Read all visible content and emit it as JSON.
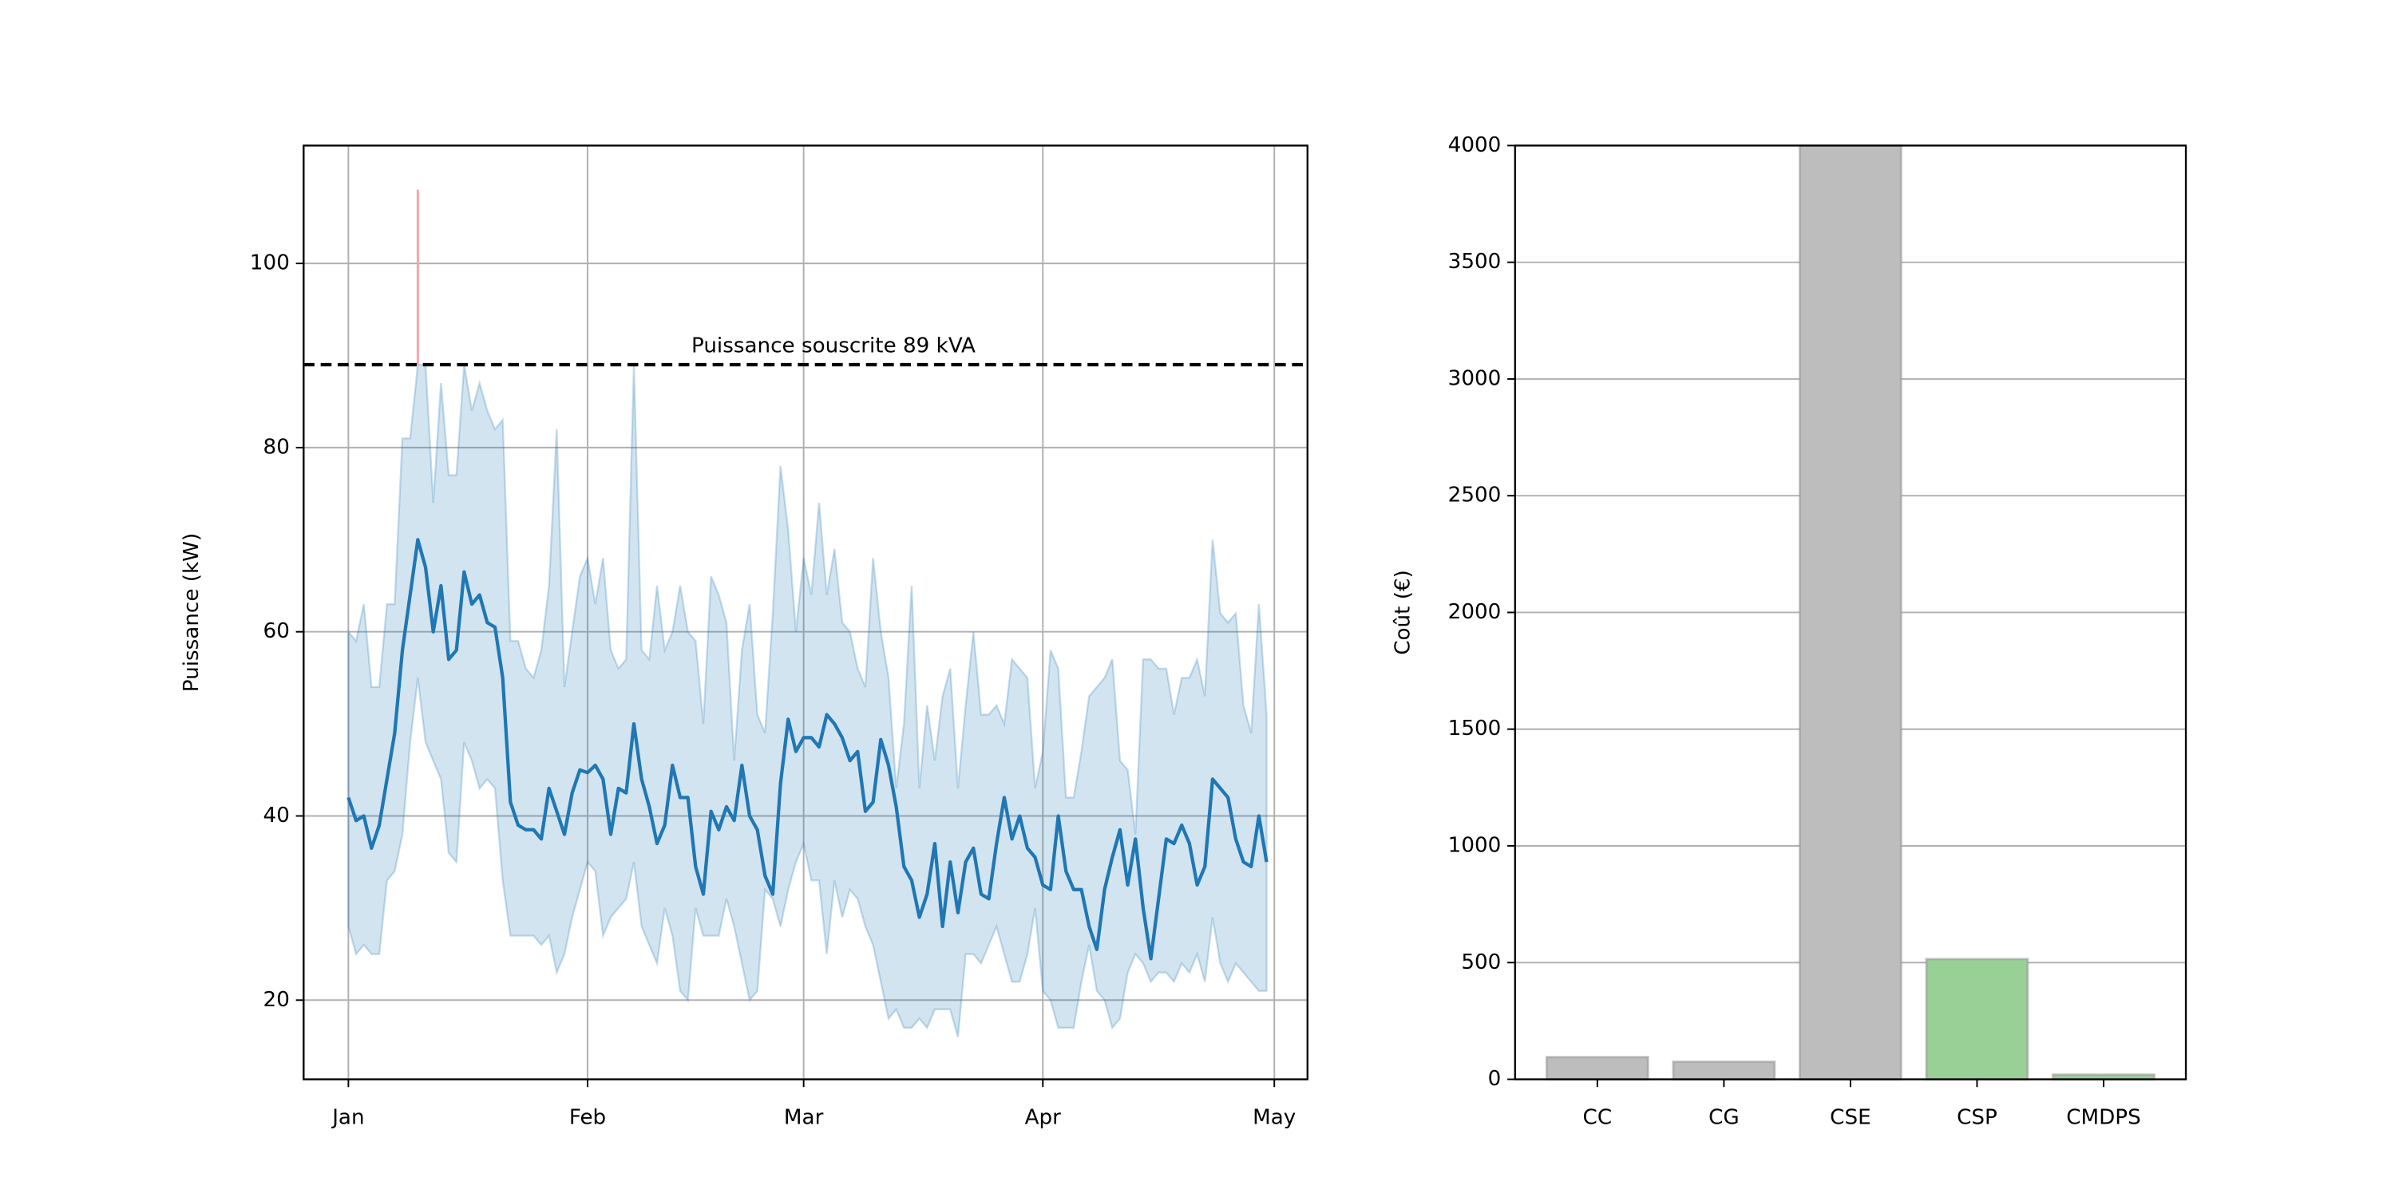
{
  "chart_data": [
    {
      "type": "line",
      "ylabel": "Puissance (kW)",
      "x": [
        0,
        1,
        2,
        3,
        4,
        5,
        6,
        7,
        8,
        9,
        10,
        11,
        12,
        13,
        14,
        15,
        16,
        17,
        18,
        19,
        20,
        21,
        22,
        23,
        24,
        25,
        26,
        27,
        28,
        29,
        30,
        31,
        32,
        33,
        34,
        35,
        36,
        37,
        38,
        39,
        40,
        41,
        42,
        43,
        44,
        45,
        46,
        47,
        48,
        49,
        50,
        51,
        52,
        53,
        54,
        55,
        56,
        57,
        58,
        59,
        60,
        61,
        62,
        63,
        64,
        65,
        66,
        67,
        68,
        69,
        70,
        71,
        72,
        73,
        74,
        75,
        76,
        77,
        78,
        79,
        80,
        81,
        82,
        83,
        84,
        85,
        86,
        87,
        88,
        89,
        90,
        91,
        92,
        93,
        94,
        95,
        96,
        97,
        98,
        99,
        100,
        101,
        102,
        103,
        104,
        105,
        106,
        107,
        108,
        109,
        110,
        111,
        112,
        113,
        114,
        115,
        116,
        117,
        118,
        119
      ],
      "series": [
        {
          "color": "#1f77b4",
          "values": [
            42,
            39.5,
            40,
            36.5,
            39,
            44,
            49,
            58,
            64,
            70,
            67,
            60,
            65,
            57,
            58,
            66.5,
            63,
            64,
            61,
            60.5,
            55,
            41.5,
            39,
            38.5,
            38.5,
            37.5,
            43,
            40.5,
            38,
            42.5,
            45,
            44.7,
            45.5,
            44,
            38,
            43,
            42.5,
            50,
            44,
            41,
            37,
            39,
            45.5,
            42,
            42,
            34.5,
            31.5,
            40.5,
            38.5,
            41,
            39.5,
            45.5,
            40,
            38.5,
            33.5,
            31.5,
            43.5,
            50.5,
            47,
            48.5,
            48.5,
            47.5,
            51,
            50,
            48.5,
            46,
            47,
            40.5,
            41.5,
            48.3,
            45.5,
            41,
            34.5,
            33,
            29,
            31.5,
            37,
            28,
            35,
            29.5,
            35,
            36.5,
            31.5,
            31,
            37,
            42,
            37.5,
            40,
            36.5,
            35.5,
            32.5,
            32,
            40,
            34,
            32,
            32,
            28,
            25.5,
            32,
            35.5,
            38.5,
            32.5,
            37.5,
            30,
            24.5,
            31,
            37.5,
            37,
            39,
            37,
            32.5,
            34.5,
            44,
            43,
            42,
            37.5,
            35,
            34.5,
            40,
            35
          ]
        }
      ],
      "band": {
        "color": "#1f77b4",
        "upper": [
          60,
          59,
          63,
          54,
          54,
          63,
          63,
          81,
          81,
          89,
          89,
          74,
          87,
          77,
          77,
          89,
          84,
          87,
          84,
          82,
          83,
          59,
          59,
          56,
          55,
          58,
          65,
          82,
          54,
          60,
          66,
          68,
          63,
          68,
          58,
          56,
          57,
          89,
          58,
          57,
          65,
          58,
          60,
          65,
          60,
          59,
          50,
          66,
          64,
          61,
          46,
          58,
          63,
          51,
          49,
          62,
          78,
          71,
          60,
          68,
          64,
          74,
          64,
          69,
          61,
          60,
          56,
          54,
          68,
          60,
          55,
          43,
          50,
          65,
          43,
          52,
          46,
          53,
          56,
          43,
          52,
          60,
          51,
          51,
          52,
          50,
          57,
          56,
          55,
          43,
          47,
          58,
          56,
          42,
          42,
          47,
          53,
          54,
          55,
          57,
          46,
          45,
          38,
          57,
          57,
          56,
          56,
          51,
          55,
          55,
          57,
          53,
          70,
          62,
          61,
          62,
          52,
          49,
          63,
          51
        ],
        "lower": [
          28,
          25,
          26,
          25,
          25,
          33,
          34,
          38,
          48,
          55,
          48,
          46,
          44,
          36,
          35,
          48,
          46,
          43,
          44,
          43,
          33,
          27,
          27,
          27,
          27,
          26,
          27,
          23,
          25,
          29,
          32,
          35,
          34,
          27,
          29,
          30,
          31,
          35,
          28,
          26,
          24,
          30,
          27,
          21,
          20,
          30,
          27,
          27,
          27,
          31,
          28,
          24,
          20,
          21,
          32,
          31,
          28,
          32,
          35,
          37,
          33,
          33,
          25,
          33,
          29,
          32,
          31,
          28,
          26,
          22,
          18,
          19,
          17,
          17,
          18,
          17,
          19,
          19,
          19,
          16,
          25,
          25,
          24,
          26,
          28,
          25,
          22,
          22,
          25,
          30,
          21,
          20,
          17,
          17,
          17,
          22,
          26,
          21,
          20,
          17,
          18,
          23,
          25,
          24,
          22,
          23,
          23,
          22,
          24,
          23,
          25,
          22,
          29,
          24,
          22,
          24,
          23,
          22,
          21,
          21
        ]
      },
      "hline": {
        "value": 89,
        "label": "Puissance souscrite 89 kVA",
        "color": "#000000"
      },
      "exceedance": {
        "x": 9,
        "value": 108,
        "color": "#f4a6a6"
      },
      "xlim": [
        -5.8,
        124.3
      ],
      "xticks": [
        {
          "value": 0,
          "label": "Jan"
        },
        {
          "value": 31,
          "label": "Feb"
        },
        {
          "value": 59,
          "label": "Mar"
        },
        {
          "value": 90,
          "label": "Apr"
        },
        {
          "value": 120,
          "label": "May"
        }
      ],
      "ylim": [
        11.4,
        112.8
      ],
      "yticks": [
        20,
        40,
        60,
        80,
        100
      ],
      "grid": true
    },
    {
      "type": "bar",
      "ylabel": "Coût (€)",
      "categories": [
        "CC",
        "CG",
        "CSE",
        "CSP",
        "CMDPS"
      ],
      "values": [
        95,
        75,
        4000,
        515,
        20
      ],
      "colors": [
        "#bdbdbd",
        "#bdbdbd",
        "#bdbdbd",
        "#98d095",
        "#98d095"
      ],
      "ylim": [
        0,
        4000
      ],
      "yticks": [
        0,
        500,
        1000,
        1500,
        2000,
        2500,
        3000,
        3500,
        4000
      ],
      "grid": true
    }
  ]
}
